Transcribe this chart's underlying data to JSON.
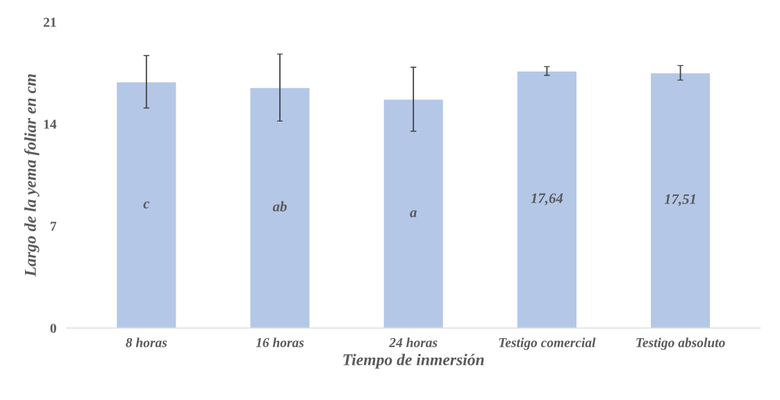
{
  "chart_data": {
    "type": "bar",
    "xlabel": "Tiempo de inmersión",
    "ylabel": "Largo de la yema foliar en cm",
    "categories": [
      "8 horas",
      "16 horas",
      "24 horas",
      "Testigo comercial",
      "Testigo absoluto"
    ],
    "values": [
      16.9,
      16.5,
      15.7,
      17.64,
      17.51
    ],
    "errors": [
      1.8,
      2.3,
      2.2,
      0.3,
      0.5
    ],
    "value_labels": [
      "c",
      "ab",
      "a",
      "17,64",
      "17,51"
    ],
    "color": "#b4c7e7",
    "ylim": [
      0,
      21
    ],
    "yticks": [
      0,
      7,
      14,
      21
    ],
    "grid": false
  }
}
